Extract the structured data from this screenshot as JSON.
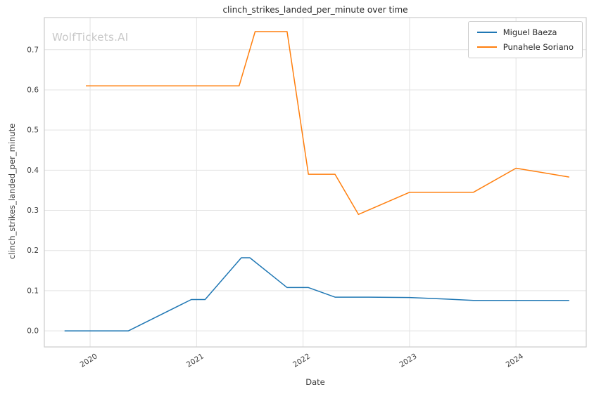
{
  "chart_data": {
    "type": "line",
    "title": "clinch_strikes_landed_per_minute over time",
    "xlabel": "Date",
    "ylabel": "clinch_strikes_landed_per_minute",
    "watermark": "WolfTickets.AI",
    "legend_position": "upper right",
    "grid": true,
    "xlim": [
      2019.57,
      2024.66
    ],
    "ylim": [
      -0.04,
      0.78
    ],
    "xticks": [
      2020,
      2021,
      2022,
      2023,
      2024
    ],
    "xtick_labels": [
      "2020",
      "2021",
      "2022",
      "2023",
      "2024"
    ],
    "yticks": [
      0.0,
      0.1,
      0.2,
      0.3,
      0.4,
      0.5,
      0.6,
      0.7
    ],
    "ytick_labels": [
      "0.0",
      "0.1",
      "0.2",
      "0.3",
      "0.4",
      "0.5",
      "0.6",
      "0.7"
    ],
    "colors": {
      "grid": "#e3e3e3",
      "spine": "#cccccc",
      "tick_label": "#3d3d3d",
      "title": "#262626",
      "watermark": "#c8c8c8"
    },
    "series": [
      {
        "name": "Miguel Baeza",
        "color": "#1f77b4",
        "points": [
          [
            2019.76,
            0.0
          ],
          [
            2020.36,
            0.0
          ],
          [
            2020.95,
            0.078
          ],
          [
            2021.08,
            0.078
          ],
          [
            2021.42,
            0.182
          ],
          [
            2021.5,
            0.182
          ],
          [
            2021.85,
            0.108
          ],
          [
            2022.05,
            0.108
          ],
          [
            2022.3,
            0.084
          ],
          [
            2022.62,
            0.084
          ],
          [
            2023.0,
            0.083
          ],
          [
            2023.35,
            0.079
          ],
          [
            2023.6,
            0.076
          ],
          [
            2024.0,
            0.076
          ],
          [
            2024.5,
            0.076
          ]
        ]
      },
      {
        "name": "Punahele Soriano",
        "color": "#ff7f0e",
        "points": [
          [
            2019.96,
            0.61
          ],
          [
            2020.5,
            0.61
          ],
          [
            2021.05,
            0.61
          ],
          [
            2021.4,
            0.61
          ],
          [
            2021.55,
            0.745
          ],
          [
            2021.85,
            0.745
          ],
          [
            2022.05,
            0.39
          ],
          [
            2022.3,
            0.39
          ],
          [
            2022.52,
            0.29
          ],
          [
            2023.0,
            0.345
          ],
          [
            2023.6,
            0.345
          ],
          [
            2024.0,
            0.405
          ],
          [
            2024.5,
            0.383
          ]
        ]
      }
    ]
  }
}
